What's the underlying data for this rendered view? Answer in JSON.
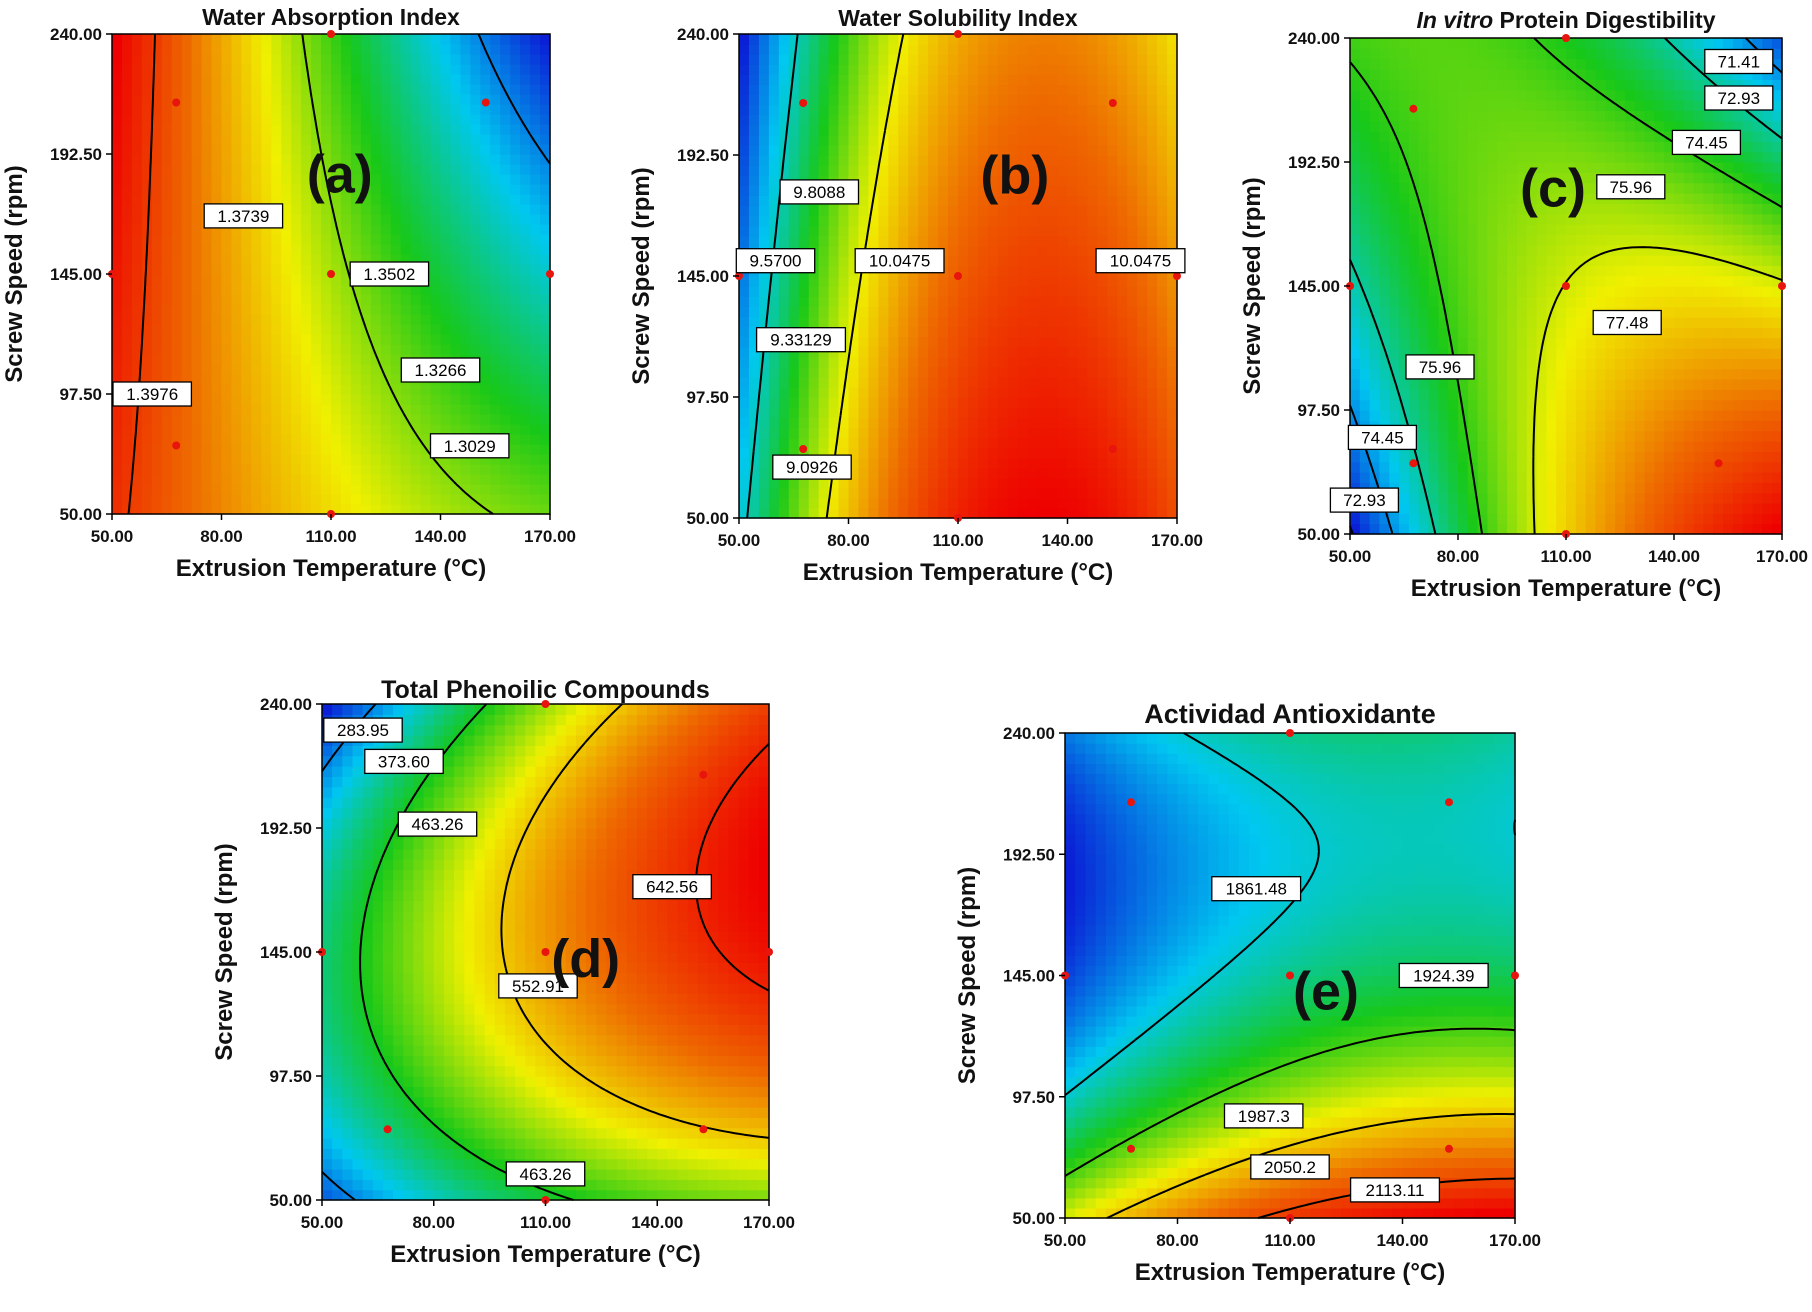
{
  "colors": {
    "colormap": [
      "#0a1fd6",
      "#00c8f0",
      "#18c818",
      "#f0f000",
      "#ee6a00",
      "#ee0000"
    ],
    "contour_line": "#000000",
    "design_point": "#e8140e",
    "label_box": "#ffffff"
  },
  "chart_data": [
    {
      "type": "heatmap",
      "panel": "(a)",
      "title": "Water Absorption Index",
      "xlabel": "Extrusion Temperature (°C)",
      "ylabel": "Screw Speed (rpm)",
      "xlim": [
        50,
        170
      ],
      "ylim": [
        50,
        240
      ],
      "x_ticks": [
        "50.00",
        "80.00",
        "110.00",
        "140.00",
        "170.00"
      ],
      "y_ticks": [
        "50.00",
        "97.50",
        "145.00",
        "192.50",
        "240.00"
      ],
      "model": {
        "b0": 1.352,
        "bx": -0.0225,
        "by": -0.006,
        "bxx": 0.004,
        "byy": 0.0,
        "bxy": -0.009
      },
      "levels": [
        1.3976,
        1.3739,
        1.3502,
        1.3266,
        1.3029
      ],
      "contour_labels": [
        {
          "text": "1.3976",
          "x": 61,
          "y": 97.5
        },
        {
          "text": "1.3739",
          "x": 86,
          "y": 168
        },
        {
          "text": "1.3502",
          "x": 126,
          "y": 145
        },
        {
          "text": "1.3266",
          "x": 140,
          "y": 107
        },
        {
          "text": "1.3029",
          "x": 148,
          "y": 77
        }
      ],
      "design_points": [
        [
          50,
          145
        ],
        [
          110,
          240
        ],
        [
          110,
          145
        ],
        [
          110,
          50
        ],
        [
          170,
          145
        ],
        [
          67.6,
          212.9
        ],
        [
          152.4,
          212.9
        ],
        [
          67.6,
          77.1
        ]
      ]
    },
    {
      "type": "heatmap",
      "panel": "(b)",
      "title": "Water Solubility Index",
      "xlabel": "Extrusion Temperature (°C)",
      "ylabel": "Screw Speed (rpm)",
      "xlim": [
        50,
        170
      ],
      "ylim": [
        50,
        240
      ],
      "x_ticks": [
        "50.00",
        "80.00",
        "110.00",
        "140.00",
        "170.00"
      ],
      "y_ticks": [
        "50.00",
        "97.50",
        "145.00",
        "192.50",
        "240.00"
      ],
      "model": {
        "b0": 10.2,
        "bx": 0.22,
        "by": -0.08,
        "bxx": -0.28,
        "byy": 0.0,
        "bxy": 0.0
      },
      "levels": [
        9.0926,
        9.33129,
        9.57,
        9.8088,
        10.0475
      ],
      "contour_labels": [
        {
          "text": "9.8088",
          "x": 72,
          "y": 178
        },
        {
          "text": "9.5700",
          "x": 60,
          "y": 151
        },
        {
          "text": "10.0475",
          "x": 94,
          "y": 151
        },
        {
          "text": "10.0475",
          "x": 160,
          "y": 151
        },
        {
          "text": "9.33129",
          "x": 67,
          "y": 120
        },
        {
          "text": "9.0926",
          "x": 70,
          "y": 70
        }
      ],
      "design_points": [
        [
          50,
          145
        ],
        [
          110,
          240
        ],
        [
          110,
          145
        ],
        [
          110,
          50
        ],
        [
          170,
          145
        ],
        [
          67.6,
          212.9
        ],
        [
          152.4,
          212.9
        ],
        [
          67.6,
          77.1
        ],
        [
          152.4,
          77.1
        ]
      ]
    },
    {
      "type": "heatmap",
      "panel": "(c)",
      "title_italic": "In vitro",
      "title": "Protein Digestibility",
      "xlabel": "Extrusion Temperature (°C)",
      "ylabel": "Screw Speed (rpm)",
      "xlim": [
        50,
        170
      ],
      "ylim": [
        50,
        240
      ],
      "x_ticks": [
        "50.00",
        "80.00",
        "110.00",
        "140.00",
        "170.00"
      ],
      "y_ticks": [
        "50.00",
        "97.50",
        "145.00",
        "192.50",
        "240.00"
      ],
      "model": {
        "b0": 77.5,
        "bx": 1.7,
        "by": -1.3,
        "bxx": -1.6,
        "byy": -0.5,
        "bxy": -3.7
      },
      "levels": [
        72.93,
        74.45,
        75.96,
        77.48,
        74.45,
        72.93,
        71.41
      ],
      "contour_labels": [
        {
          "text": "71.41",
          "x": 158,
          "y": 231
        },
        {
          "text": "72.93",
          "x": 158,
          "y": 217
        },
        {
          "text": "74.45",
          "x": 149,
          "y": 200
        },
        {
          "text": "75.96",
          "x": 128,
          "y": 183
        },
        {
          "text": "77.48",
          "x": 127,
          "y": 131
        },
        {
          "text": "75.96",
          "x": 75,
          "y": 114
        },
        {
          "text": "74.45",
          "x": 59,
          "y": 87
        },
        {
          "text": "72.93",
          "x": 54,
          "y": 63
        }
      ],
      "design_points": [
        [
          50,
          145
        ],
        [
          110,
          240
        ],
        [
          110,
          145
        ],
        [
          110,
          50
        ],
        [
          170,
          145
        ],
        [
          67.6,
          212.9
        ],
        [
          67.6,
          77.1
        ],
        [
          152.4,
          77.1
        ]
      ]
    },
    {
      "type": "heatmap",
      "panel": "(d)",
      "title": "Total Phenoilic Compounds",
      "xlabel": "Extrusion Temperature (°C)",
      "ylabel": "Screw Speed (rpm)",
      "xlim": [
        50,
        170
      ],
      "ylim": [
        50,
        240
      ],
      "x_ticks": [
        "50.00",
        "80.00",
        "110.00",
        "140.00",
        "170.00"
      ],
      "y_ticks": [
        "50.00",
        "97.50",
        "145.00",
        "192.50",
        "240.00"
      ],
      "model": {
        "b0": 575,
        "bx": 110,
        "by": 25,
        "bxx": -30,
        "byy": -95,
        "bxy": 40
      },
      "levels": [
        283.95,
        373.6,
        463.26,
        552.91,
        642.56,
        463.26
      ],
      "contour_labels": [
        {
          "text": "283.95",
          "x": 61,
          "y": 230
        },
        {
          "text": "373.60",
          "x": 72,
          "y": 218
        },
        {
          "text": "463.26",
          "x": 81,
          "y": 194
        },
        {
          "text": "642.56",
          "x": 144,
          "y": 170
        },
        {
          "text": "552.91",
          "x": 108,
          "y": 132
        },
        {
          "text": "463.26",
          "x": 110,
          "y": 60
        }
      ],
      "design_points": [
        [
          50,
          145
        ],
        [
          110,
          240
        ],
        [
          110,
          145
        ],
        [
          110,
          50
        ],
        [
          170,
          145
        ],
        [
          152.4,
          212.9
        ],
        [
          67.6,
          77.1
        ],
        [
          152.4,
          77.1
        ]
      ]
    },
    {
      "type": "heatmap",
      "panel": "(e)",
      "title": "Actividad Antioxidante",
      "xlabel": "Extrusion Temperature (°C)",
      "ylabel": "Screw Speed (rpm)",
      "xlim": [
        50,
        170
      ],
      "ylim": [
        50,
        240
      ],
      "x_ticks": [
        "50.00",
        "80.00",
        "110.00",
        "140.00",
        "170.00"
      ],
      "y_ticks": [
        "50.00",
        "97.50",
        "145.00",
        "192.50",
        "240.00"
      ],
      "model": {
        "b0": 1880,
        "bx": 45,
        "by": -90,
        "bxx": -30,
        "byy": 90,
        "bxy": -20
      },
      "levels": [
        1861.48,
        1924.39,
        1987.3,
        2050.2,
        2113.11
      ],
      "contour_labels": [
        {
          "text": "1861.48",
          "x": 101,
          "y": 179
        },
        {
          "text": "1924.39",
          "x": 151,
          "y": 145
        },
        {
          "text": "1987.3",
          "x": 103,
          "y": 90
        },
        {
          "text": "2050.2",
          "x": 110,
          "y": 70
        },
        {
          "text": "2113.11",
          "x": 138,
          "y": 61
        }
      ],
      "design_points": [
        [
          50,
          145
        ],
        [
          110,
          240
        ],
        [
          110,
          145
        ],
        [
          110,
          50
        ],
        [
          170,
          145
        ],
        [
          67.6,
          212.9
        ],
        [
          152.4,
          212.9
        ],
        [
          67.6,
          77.1
        ],
        [
          152.4,
          77.1
        ]
      ]
    }
  ]
}
